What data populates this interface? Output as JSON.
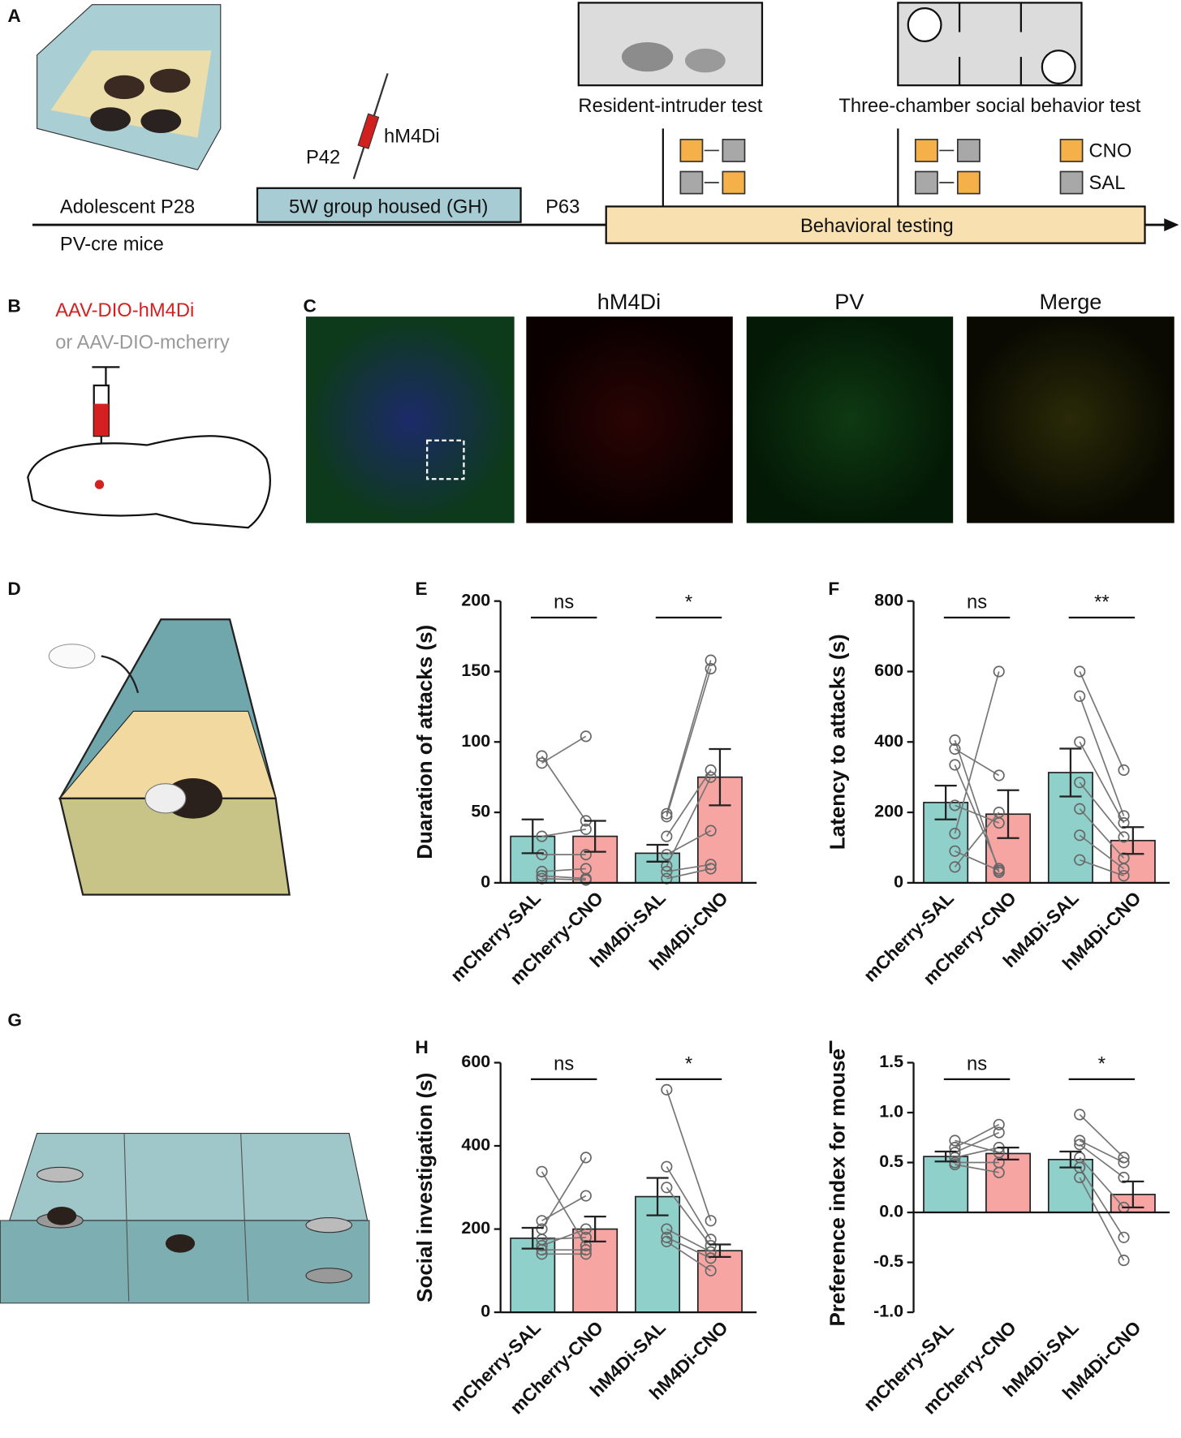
{
  "panel_labels": [
    "A",
    "B",
    "C",
    "D",
    "E",
    "F",
    "G",
    "H",
    "I"
  ],
  "timeline": {
    "adolescent": "Adolescent P28",
    "mice": "PV-cre mice",
    "housing": "5W group housed (GH)",
    "p42": "P42",
    "virus": "hM4Di",
    "p63": "P63",
    "testing": "Behavioral testing",
    "resident": "Resident-intruder test",
    "three": "Three-chamber social behavior test",
    "cno": "CNO",
    "sal": "SAL"
  },
  "injection": {
    "line1": "AAV-DIO-hM4Di",
    "line2": "or AAV-DIO-mcherry"
  },
  "images": [
    "hM4Di",
    "PV",
    "Merge"
  ],
  "chart_data": [
    {
      "type": "bar",
      "ylabel": "Duaration of attacks (s)",
      "categories": [
        "mCherry-SAL",
        "mCherry-CNO",
        "hM4Di-SAL",
        "hM4Di-CNO"
      ],
      "values": [
        33,
        33,
        21,
        75
      ],
      "errors": [
        12,
        11,
        6,
        20
      ],
      "points": [
        [
          90,
          85,
          33,
          20,
          8,
          5,
          3
        ],
        [
          44,
          104,
          38,
          20,
          10,
          3,
          2
        ],
        [
          49,
          47,
          33,
          20,
          12,
          8,
          3
        ],
        [
          158,
          152,
          80,
          37,
          75,
          13,
          10
        ]
      ],
      "annotations": [
        "ns",
        "*"
      ],
      "colors": [
        "#8fd0cb",
        "#f6a5a2",
        "#8fd0cb",
        "#f6a5a2"
      ],
      "ylim": [
        0,
        200
      ],
      "yticks": [
        0,
        50,
        100,
        150,
        200
      ]
    },
    {
      "type": "bar",
      "ylabel": "Latency to attacks (s)",
      "categories": [
        "mCherry-SAL",
        "mCherry-CNO",
        "hM4Di-SAL",
        "hM4Di-CNO"
      ],
      "values": [
        228,
        195,
        313,
        120
      ],
      "errors": [
        48,
        68,
        68,
        38
      ],
      "points": [
        [
          405,
          380,
          335,
          220,
          140,
          90,
          45
        ],
        [
          30,
          305,
          40,
          170,
          600,
          35,
          200
        ],
        [
          600,
          530,
          400,
          285,
          210,
          135,
          65
        ],
        [
          320,
          190,
          170,
          130,
          70,
          40,
          20
        ]
      ],
      "annotations": [
        "ns",
        "**"
      ],
      "colors": [
        "#8fd0cb",
        "#f6a5a2",
        "#8fd0cb",
        "#f6a5a2"
      ],
      "ylim": [
        0,
        800
      ],
      "yticks": [
        0,
        200,
        400,
        600,
        800
      ]
    },
    {
      "type": "bar",
      "ylabel": "Social investigation (s)",
      "categories": [
        "mCherry-SAL",
        "mCherry-CNO",
        "hM4Di-SAL",
        "hM4Di-CNO"
      ],
      "values": [
        178,
        200,
        278,
        148
      ],
      "errors": [
        25,
        30,
        45,
        15
      ],
      "points": [
        [
          338,
          220,
          200,
          175,
          160,
          150,
          140
        ],
        [
          160,
          280,
          372,
          180,
          200,
          150,
          140
        ],
        [
          535,
          350,
          300,
          200,
          180,
          170
        ],
        [
          220,
          175,
          160,
          145,
          130,
          100
        ]
      ],
      "annotations": [
        "ns",
        "*"
      ],
      "colors": [
        "#8fd0cb",
        "#f6a5a2",
        "#8fd0cb",
        "#f6a5a2"
      ],
      "ylim": [
        0,
        600
      ],
      "yticks": [
        0,
        200,
        400,
        600
      ]
    },
    {
      "type": "bar",
      "ylabel": "Preference index for mouse",
      "categories": [
        "mCherry-SAL",
        "mCherry-CNO",
        "hM4Di-SAL",
        "hM4Di-CNO"
      ],
      "values": [
        0.56,
        0.59,
        0.53,
        0.18
      ],
      "errors": [
        0.05,
        0.06,
        0.08,
        0.13
      ],
      "points": [
        [
          0.72,
          0.65,
          0.6,
          0.55,
          0.5,
          0.48
        ],
        [
          0.6,
          0.88,
          0.8,
          0.65,
          0.5,
          0.4
        ],
        [
          0.98,
          0.72,
          0.68,
          0.55,
          0.45,
          0.35
        ],
        [
          0.55,
          0.5,
          0.35,
          0.05,
          -0.25,
          -0.48
        ]
      ],
      "annotations": [
        "ns",
        "*"
      ],
      "colors": [
        "#8fd0cb",
        "#f6a5a2",
        "#8fd0cb",
        "#f6a5a2"
      ],
      "ylim": [
        -1,
        1.5
      ],
      "yticks": [
        {
          "value": -1,
          "label": "-1.0"
        },
        -0.5,
        {
          "value": 0,
          "label": "0.0"
        },
        0.5,
        {
          "value": 1,
          "label": "1.0"
        },
        1.5
      ]
    }
  ]
}
